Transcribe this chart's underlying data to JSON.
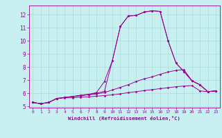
{
  "title": "",
  "xlabel": "Windchill (Refroidissement éolien,°C)",
  "ylabel": "",
  "bg_color": "#c8f0f0",
  "grid_color": "#aadddd",
  "line_color": "#990099",
  "xlim": [
    -0.5,
    23.5
  ],
  "ylim": [
    4.9,
    12.7
  ],
  "yticks": [
    5,
    6,
    7,
    8,
    9,
    10,
    11,
    12
  ],
  "xticks": [
    0,
    1,
    2,
    3,
    4,
    5,
    6,
    7,
    8,
    9,
    10,
    11,
    12,
    13,
    14,
    15,
    16,
    17,
    18,
    19,
    20,
    21,
    22,
    23
  ],
  "line1_x": [
    0,
    1,
    2,
    3,
    4,
    5,
    6,
    7,
    8,
    9,
    10,
    11,
    12,
    13,
    14,
    15,
    16,
    17,
    18,
    19,
    20,
    21,
    22,
    23
  ],
  "line1_y": [
    5.3,
    5.2,
    5.3,
    5.6,
    5.65,
    5.65,
    5.7,
    5.72,
    5.78,
    5.82,
    5.88,
    5.95,
    6.05,
    6.12,
    6.2,
    6.28,
    6.35,
    6.42,
    6.5,
    6.55,
    6.58,
    6.18,
    6.12,
    6.18
  ],
  "line2_x": [
    0,
    1,
    2,
    3,
    4,
    5,
    6,
    7,
    8,
    9,
    10,
    11,
    12,
    13,
    14,
    15,
    16,
    17,
    18,
    19,
    20,
    21,
    22,
    23
  ],
  "line2_y": [
    5.3,
    5.2,
    5.3,
    5.6,
    5.68,
    5.75,
    5.82,
    5.88,
    5.95,
    6.05,
    6.25,
    6.45,
    6.65,
    6.9,
    7.1,
    7.25,
    7.45,
    7.62,
    7.75,
    7.8,
    6.95,
    6.65,
    6.12,
    6.18
  ],
  "line3_x": [
    0,
    1,
    2,
    3,
    4,
    5,
    6,
    7,
    8,
    9,
    10,
    11,
    12,
    13,
    14,
    15,
    16,
    17,
    18,
    19,
    20,
    21,
    22,
    23
  ],
  "line3_y": [
    5.3,
    5.2,
    5.3,
    5.6,
    5.68,
    5.75,
    5.82,
    5.9,
    6.0,
    6.15,
    8.5,
    11.1,
    11.9,
    11.95,
    12.2,
    12.3,
    12.25,
    10.0,
    8.3,
    7.65,
    6.95,
    6.65,
    6.12,
    6.18
  ],
  "line4_x": [
    0,
    1,
    2,
    3,
    4,
    5,
    6,
    7,
    8,
    9,
    10,
    11,
    12,
    13,
    14,
    15,
    16,
    17,
    18,
    19,
    20,
    21,
    22,
    23
  ],
  "line4_y": [
    5.3,
    5.2,
    5.3,
    5.6,
    5.68,
    5.75,
    5.85,
    5.92,
    6.05,
    6.9,
    8.5,
    11.1,
    11.9,
    11.95,
    12.2,
    12.3,
    12.25,
    10.0,
    8.3,
    7.65,
    6.95,
    6.65,
    6.12,
    6.18
  ]
}
